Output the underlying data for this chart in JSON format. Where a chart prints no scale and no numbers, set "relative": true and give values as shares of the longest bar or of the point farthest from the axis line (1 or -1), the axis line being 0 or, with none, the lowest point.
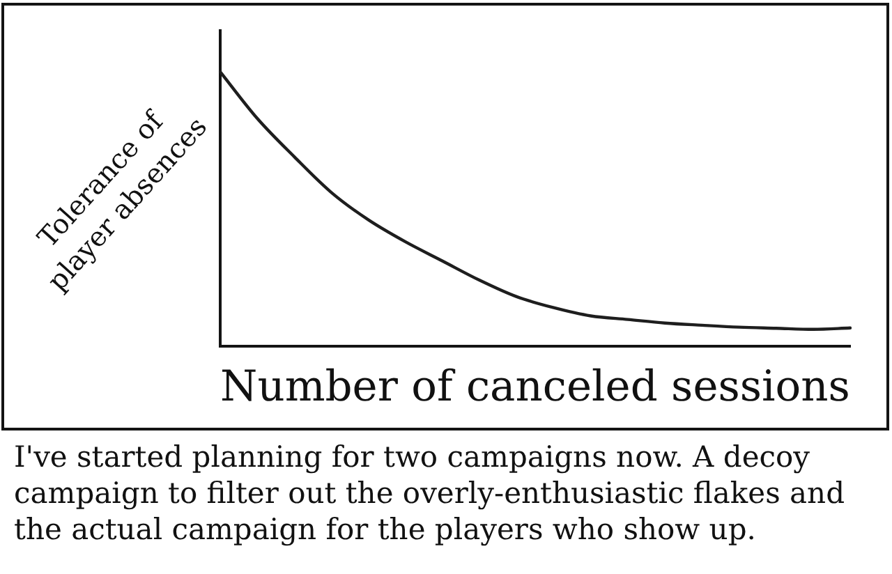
{
  "chart_data": {
    "type": "line",
    "xlabel": "Number of canceled sessions",
    "ylabel": "Tolerance of player absences",
    "annotations": [
      "I've started planning for two campaigns now. A decoy campaign to filter out the overly-enthusiastic flakes and the actual campaign for the players who show up."
    ],
    "categories": [
      null,
      null,
      null,
      null,
      null,
      null,
      null,
      null,
      null,
      null,
      null,
      null,
      null,
      null,
      null,
      null,
      null,
      null
    ],
    "series": [
      {
        "color": "#1e1e1e",
        "values": [
          1,
          0.83,
          0.69,
          0.56,
          0.46,
          0.38,
          0.31,
          0.24,
          0.18,
          0.14,
          0.11,
          0.097,
          0.084,
          0.076,
          0.069,
          0.065,
          0.061,
          0.066
        ]
      }
    ],
    "relative": true,
    "marker": "none"
  }
}
